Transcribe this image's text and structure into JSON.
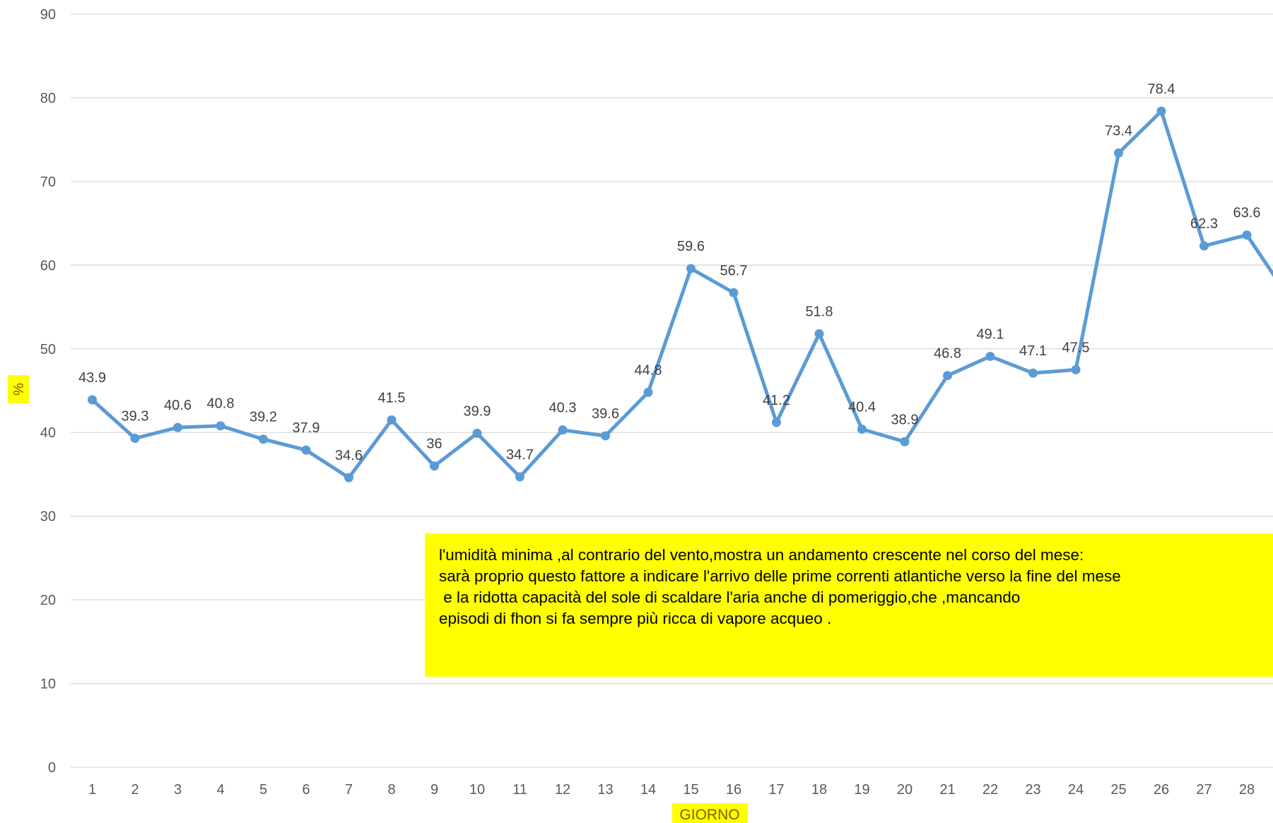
{
  "colors": {
    "series": "#5b9bd5",
    "grid": "#d9d9d9",
    "axis_text": "#595959",
    "label_text": "#404040",
    "highlight": "#ffff00",
    "axis_title": "#7f6000"
  },
  "chart_data": {
    "type": "line",
    "title": "",
    "xlabel": "GIORNO",
    "ylabel": "%",
    "ylim": [
      0,
      90
    ],
    "yticks": [
      0,
      10,
      20,
      30,
      40,
      50,
      60,
      70,
      80,
      90
    ],
    "grid": true,
    "legend": "none",
    "categories": [
      "1",
      "2",
      "3",
      "4",
      "5",
      "6",
      "7",
      "8",
      "9",
      "10",
      "11",
      "12",
      "13",
      "14",
      "15",
      "16",
      "17",
      "18",
      "19",
      "20",
      "21",
      "22",
      "23",
      "24",
      "25",
      "26",
      "27",
      "28"
    ],
    "series": [
      {
        "values": [
          43.9,
          39.3,
          40.6,
          40.8,
          39.2,
          37.9,
          34.6,
          41.5,
          36,
          39.9,
          34.7,
          40.3,
          39.6,
          44.8,
          59.6,
          56.7,
          41.2,
          51.8,
          40.4,
          38.9,
          46.8,
          49.1,
          47.1,
          47.5,
          73.4,
          78.4,
          62.3,
          63.6
        ],
        "continues_past_edge_to": 56
      }
    ]
  },
  "annotation": {
    "lines": [
      "l'umidità minima ,al contrario del vento,mostra un andamento crescente nel corso del mese:",
      "sarà proprio questo fattore a indicare l'arrivo delle prime correnti atlantiche verso la fine del mese",
      " e la ridotta capacità del sole di scaldare l'aria anche di pomeriggio,che ,mancando",
      "episodi di fhon si fa sempre più ricca di vapore acqueo ."
    ]
  }
}
